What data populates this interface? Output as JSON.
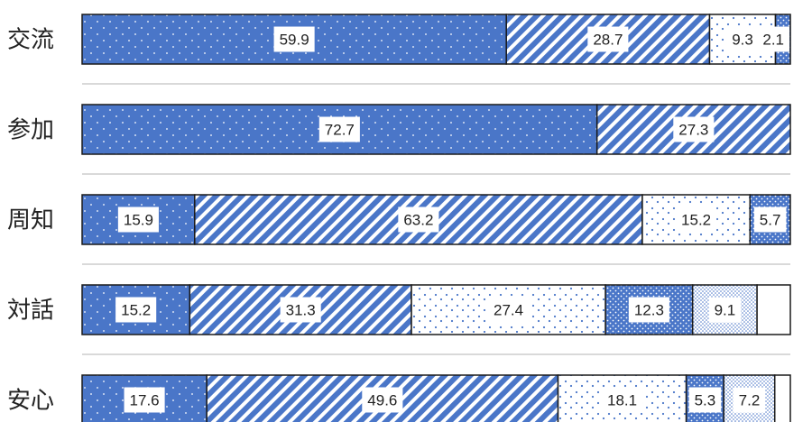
{
  "chart_data": {
    "type": "bar",
    "orientation": "horizontal",
    "stacked": true,
    "normalized_percent": true,
    "categories": [
      "交流",
      "参加",
      "周知",
      "対話",
      "安心"
    ],
    "rows": [
      {
        "category": "交流",
        "values": [
          59.9,
          28.7,
          9.3,
          2.1
        ],
        "labels": [
          "59.9",
          "28.7",
          "9.3",
          "2.1"
        ]
      },
      {
        "category": "参加",
        "values": [
          72.7,
          27.3
        ],
        "labels": [
          "72.7",
          "27.3"
        ]
      },
      {
        "category": "周知",
        "values": [
          15.9,
          63.2,
          15.2,
          5.7
        ],
        "labels": [
          "15.9",
          "63.2",
          "15.2",
          "5.7"
        ]
      },
      {
        "category": "対話",
        "values": [
          15.2,
          31.3,
          27.4,
          12.3,
          9.1,
          4.7
        ],
        "labels": [
          "15.2",
          "31.3",
          "27.4",
          "12.3",
          "9.1",
          ""
        ]
      },
      {
        "category": "安心",
        "values": [
          17.6,
          49.6,
          18.1,
          5.3,
          7.2,
          2.2
        ],
        "labels": [
          "17.6",
          "49.6",
          "18.1",
          "5.3",
          "7.2",
          ""
        ]
      }
    ],
    "segment_patterns": [
      "dots-solid",
      "diagonal-stripes",
      "sparse-dots-light",
      "dense-dots-dark",
      "fine-dots-light",
      "blank"
    ],
    "colors": {
      "primary": "#4a76c8",
      "light": "#ffffff",
      "outline": "#1a1a1a",
      "separator": "#d9d9d9"
    },
    "grid": false,
    "legend": false
  }
}
